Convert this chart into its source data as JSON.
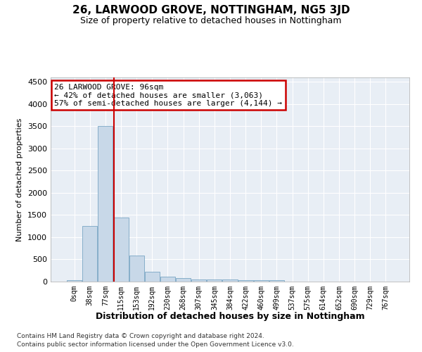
{
  "title": "26, LARWOOD GROVE, NOTTINGHAM, NG5 3JD",
  "subtitle": "Size of property relative to detached houses in Nottingham",
  "xlabel": "Distribution of detached houses by size in Nottingham",
  "ylabel": "Number of detached properties",
  "bar_color": "#c8d8e8",
  "bar_edge_color": "#6699bb",
  "background_color": "#e8eef5",
  "footer_line1": "Contains HM Land Registry data © Crown copyright and database right 2024.",
  "footer_line2": "Contains public sector information licensed under the Open Government Licence v3.0.",
  "bin_labels": [
    "0sqm",
    "38sqm",
    "77sqm",
    "115sqm",
    "153sqm",
    "192sqm",
    "230sqm",
    "268sqm",
    "307sqm",
    "345sqm",
    "384sqm",
    "422sqm",
    "460sqm",
    "499sqm",
    "537sqm",
    "575sqm",
    "614sqm",
    "652sqm",
    "690sqm",
    "729sqm",
    "767sqm"
  ],
  "bar_values": [
    30,
    1250,
    3500,
    1450,
    580,
    230,
    110,
    75,
    55,
    50,
    45,
    30,
    30,
    25,
    5,
    3,
    2,
    1,
    1,
    1,
    0
  ],
  "ylim": [
    0,
    4600
  ],
  "yticks": [
    0,
    500,
    1000,
    1500,
    2000,
    2500,
    3000,
    3500,
    4000,
    4500
  ],
  "red_line_x": 2.53,
  "annotation_text_line1": "26 LARWOOD GROVE: 96sqm",
  "annotation_text_line2": "← 42% of detached houses are smaller (3,063)",
  "annotation_text_line3": "57% of semi-detached houses are larger (4,144) →",
  "annotation_box_color": "#cc0000",
  "annotation_box_facecolor": "white",
  "red_line_color": "#cc0000",
  "title_fontsize": 11,
  "subtitle_fontsize": 9
}
